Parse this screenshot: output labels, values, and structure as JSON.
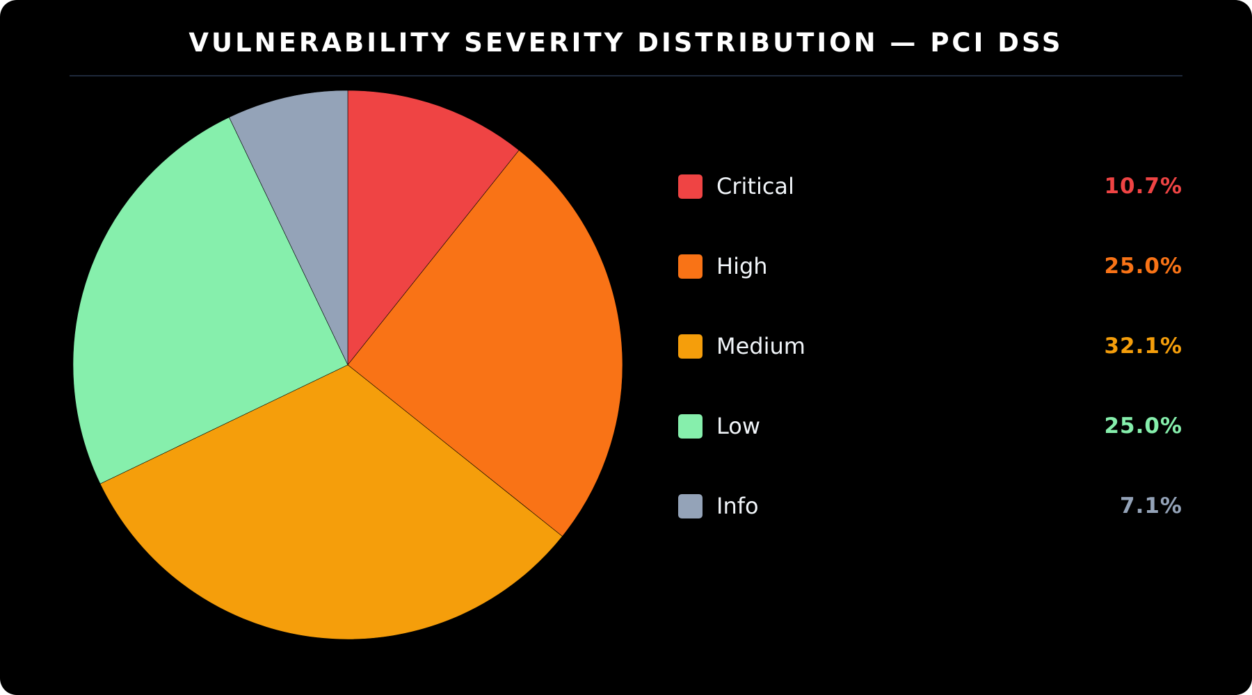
{
  "chart_data": {
    "type": "pie",
    "title": "VULNERABILITY SEVERITY DISTRIBUTION — PCI DSS",
    "categories": [
      "Critical",
      "High",
      "Medium",
      "Low",
      "Info"
    ],
    "values": [
      10.7,
      25.0,
      32.1,
      25.0,
      7.1
    ],
    "value_labels": [
      "10.7%",
      "25.0%",
      "32.1%",
      "25.0%",
      "7.1%"
    ],
    "colors": [
      "#ef4444",
      "#f97316",
      "#f59e0b",
      "#86efac",
      "#94a3b8"
    ],
    "start_angle": "12 o'clock",
    "direction": "clockwise",
    "legend_position": "right"
  }
}
